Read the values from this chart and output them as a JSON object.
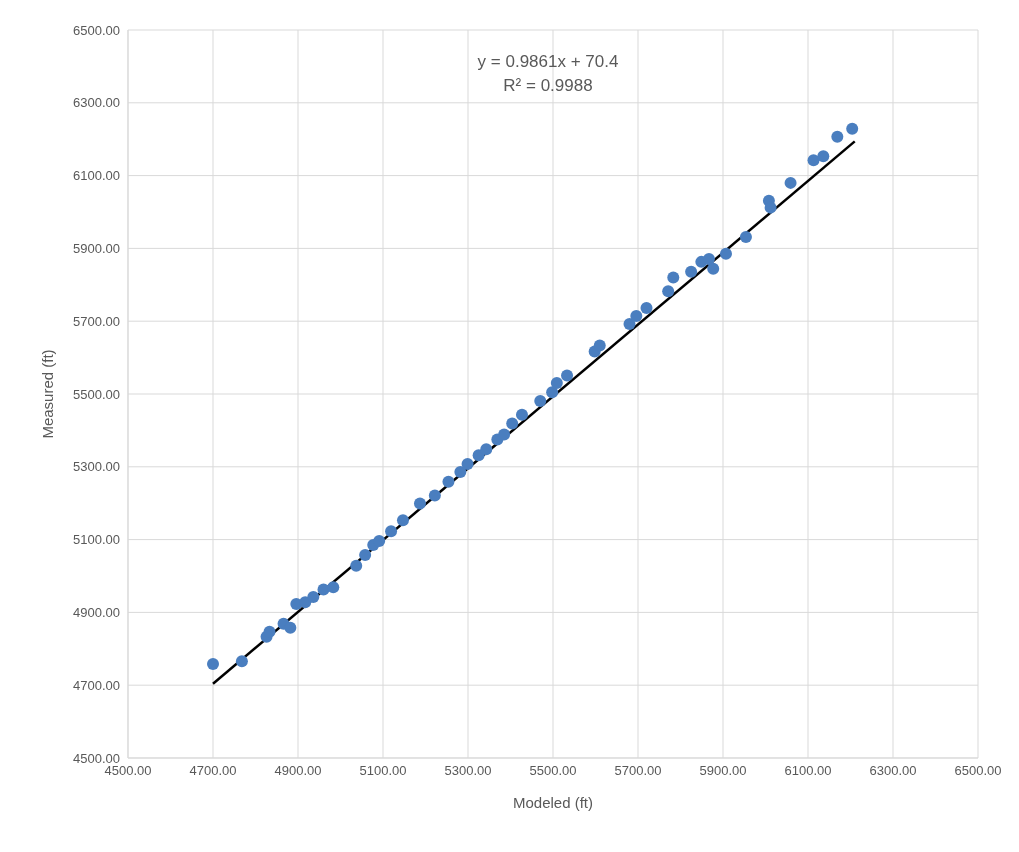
{
  "chart_data": {
    "type": "scatter",
    "xlabel": "Modeled (ft)",
    "ylabel": "Measured (ft)",
    "annotations": [
      "y = 0.9861x + 70.4",
      "R² = 0.9988"
    ],
    "xlim": [
      4500,
      6500
    ],
    "ylim": [
      4500,
      6500
    ],
    "xticks": [
      {
        "value": 4500,
        "label": "4500.00"
      },
      {
        "value": 4700,
        "label": "4700.00"
      },
      {
        "value": 4900,
        "label": "4900.00"
      },
      {
        "value": 5100,
        "label": "5100.00"
      },
      {
        "value": 5300,
        "label": "5300.00"
      },
      {
        "value": 5500,
        "label": "5500.00"
      },
      {
        "value": 5700,
        "label": "5700.00"
      },
      {
        "value": 5900,
        "label": "5900.00"
      },
      {
        "value": 6100,
        "label": "6100.00"
      },
      {
        "value": 6300,
        "label": "6300.00"
      },
      {
        "value": 6500,
        "label": "6500.00"
      }
    ],
    "yticks": [
      {
        "value": 4500,
        "label": "4500.00"
      },
      {
        "value": 4700,
        "label": "4700.00"
      },
      {
        "value": 4900,
        "label": "4900.00"
      },
      {
        "value": 5100,
        "label": "5100.00"
      },
      {
        "value": 5300,
        "label": "5300.00"
      },
      {
        "value": 5500,
        "label": "5500.00"
      },
      {
        "value": 5700,
        "label": "5700.00"
      },
      {
        "value": 5900,
        "label": "5900.00"
      },
      {
        "value": 6100,
        "label": "6100.00"
      },
      {
        "value": 6300,
        "label": "6300.00"
      },
      {
        "value": 6500,
        "label": "6500.00"
      }
    ],
    "grid": true,
    "series": [
      {
        "type": "line",
        "color": "#000000",
        "line_style": "solid",
        "marker": "none",
        "x": [
          4700,
          6210
        ],
        "values": [
          4704,
          6194
        ]
      },
      {
        "color": "#4a7ebf",
        "marker": "circle",
        "x": [
          4700,
          4768,
          4826,
          4833,
          4866,
          4882,
          4896,
          4917,
          4936,
          4960,
          4983,
          5037,
          5058,
          5077,
          5091,
          5119,
          5147,
          5187,
          5222,
          5254,
          5282,
          5299,
          5325,
          5343,
          5369,
          5385,
          5404,
          5427,
          5470,
          5498,
          5509,
          5533,
          5598,
          5610,
          5680,
          5696,
          5720,
          5771,
          5783,
          5825,
          5849,
          5867,
          5877,
          5907,
          5954,
          6008,
          6012,
          6059,
          6113,
          6136,
          6169,
          6204
        ],
        "values": [
          4758,
          4766,
          4833,
          4847,
          4869,
          4858,
          4923,
          4928,
          4942,
          4963,
          4969,
          5028,
          5058,
          5085,
          5096,
          5123,
          5153,
          5199,
          5221,
          5259,
          5286,
          5308,
          5332,
          5348,
          5375,
          5389,
          5419,
          5443,
          5481,
          5505,
          5530,
          5551,
          5617,
          5633,
          5692,
          5714,
          5736,
          5782,
          5820,
          5836,
          5863,
          5871,
          5844,
          5885,
          5931,
          6031,
          6012,
          6080,
          6142,
          6153,
          6207,
          6229
        ]
      }
    ]
  }
}
